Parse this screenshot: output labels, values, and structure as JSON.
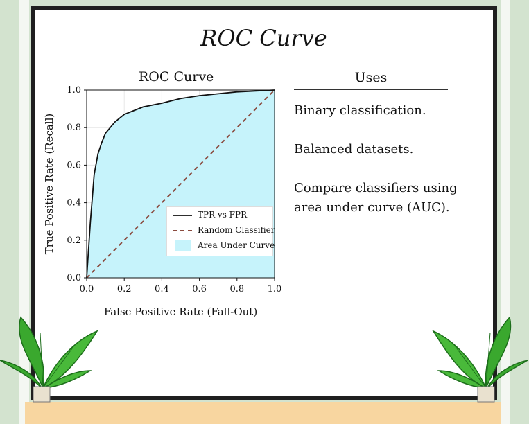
{
  "page": {
    "title": "ROC Curve"
  },
  "chart_data": {
    "type": "line",
    "title": "ROC Curve",
    "xlabel": "False Positive Rate (Fall-Out)",
    "ylabel": "True Positive Rate (Recall)",
    "xlim": [
      0.0,
      1.0
    ],
    "ylim": [
      0.0,
      1.0
    ],
    "x_ticks": [
      "0.0",
      "0.2",
      "0.4",
      "0.6",
      "0.8",
      "1.0"
    ],
    "y_ticks": [
      "0.0",
      "0.2",
      "0.4",
      "0.6",
      "0.8",
      "1.0"
    ],
    "grid": true,
    "legend_position": "bottom-right",
    "series": [
      {
        "name": "TPR vs FPR",
        "style": "solid",
        "color": "#111111",
        "x": [
          0.0,
          0.02,
          0.04,
          0.06,
          0.08,
          0.1,
          0.15,
          0.2,
          0.3,
          0.4,
          0.5,
          0.6,
          0.7,
          0.8,
          0.9,
          1.0
        ],
        "y": [
          0.0,
          0.3,
          0.55,
          0.66,
          0.72,
          0.77,
          0.83,
          0.87,
          0.91,
          0.93,
          0.955,
          0.97,
          0.98,
          0.99,
          0.995,
          1.0
        ]
      },
      {
        "name": "Random Classifier",
        "style": "dashed",
        "color": "#8b4a3e",
        "x": [
          0.0,
          1.0
        ],
        "y": [
          0.0,
          1.0
        ]
      }
    ],
    "area": {
      "name": "Area Under Curve",
      "color": "#c6f3fb"
    }
  },
  "uses": {
    "heading": "Uses",
    "items": [
      "Binary classification.",
      "Balanced datasets.",
      "Compare classifiers using area under curve (AUC)."
    ]
  },
  "colors": {
    "background": "#d3e3cf",
    "frame": "#1f1f1f",
    "shelf": "#f8d6a0",
    "leaf": "#3aa82e"
  }
}
